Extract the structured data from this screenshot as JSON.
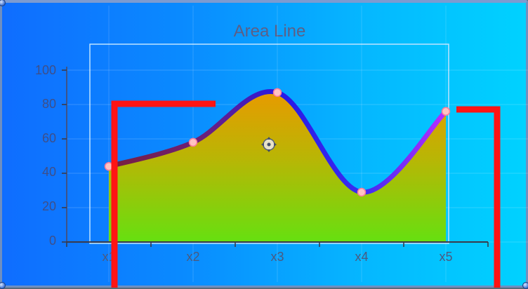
{
  "chart_data": {
    "type": "area",
    "title": "Area Line",
    "categories": [
      "x1",
      "x2",
      "x3",
      "x4",
      "x5"
    ],
    "series": [
      {
        "values": [
          44,
          58,
          87,
          29,
          76
        ]
      }
    ],
    "yticks": [
      0,
      20,
      40,
      60,
      80,
      100
    ],
    "ylim": [
      0,
      100
    ],
    "grid": true,
    "colors": {
      "background_left": "#0f6dff",
      "background_right": "#00d2ff",
      "area_top": "#e89a00",
      "area_bottom": "#66e010",
      "line_start": "#7a1f3c",
      "line_mid": "#2618e6",
      "line_end": "#b92cff",
      "marker": "#ffc2c2",
      "bracket": "#ff1414"
    }
  }
}
